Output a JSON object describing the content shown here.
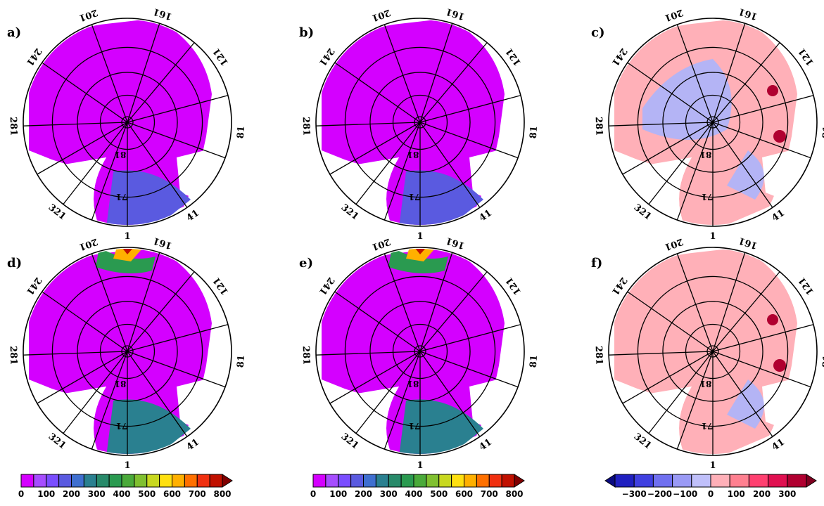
{
  "panels": [
    {
      "id": "a",
      "label": "a)",
      "kind": "total",
      "wedge": "low"
    },
    {
      "id": "b",
      "label": "b)",
      "kind": "total",
      "wedge": "low2"
    },
    {
      "id": "c",
      "label": "c)",
      "kind": "diff",
      "wedge": "mixed"
    },
    {
      "id": "d",
      "label": "d)",
      "kind": "total",
      "wedge": "high"
    },
    {
      "id": "e",
      "label": "e)",
      "kind": "total",
      "wedge": "high2"
    },
    {
      "id": "f",
      "label": "f)",
      "kind": "diff",
      "wedge": "pos"
    }
  ],
  "longitude_labels": [
    "1",
    "41",
    "81",
    "121",
    "161",
    "201",
    "241",
    "281",
    "321"
  ],
  "latitude_labels": [
    "81",
    "71"
  ],
  "colorbar_total": {
    "ticks": [
      "0",
      "100",
      "200",
      "300",
      "400",
      "500",
      "600",
      "700",
      "800"
    ],
    "colors": [
      "#d400ff",
      "#a64dff",
      "#7a4dff",
      "#5a5ae0",
      "#3f6fd0",
      "#2a8090",
      "#288a6a",
      "#2a9a50",
      "#4aaa3a",
      "#80c030",
      "#c8d820",
      "#ffe010",
      "#ffb000",
      "#ff7000",
      "#f03010",
      "#c01000",
      "#800000"
    ]
  },
  "colorbar_diff": {
    "ticks": [
      "-300",
      "-200",
      "-100",
      "0",
      "100",
      "200",
      "300"
    ],
    "colors": [
      "#0a0a80",
      "#2020c0",
      "#4040e0",
      "#7070f0",
      "#9a9af5",
      "#c0c0fa",
      "#ffb0b8",
      "#ff8090",
      "#ff4070",
      "#e01050",
      "#b00030",
      "#800020"
    ]
  }
}
